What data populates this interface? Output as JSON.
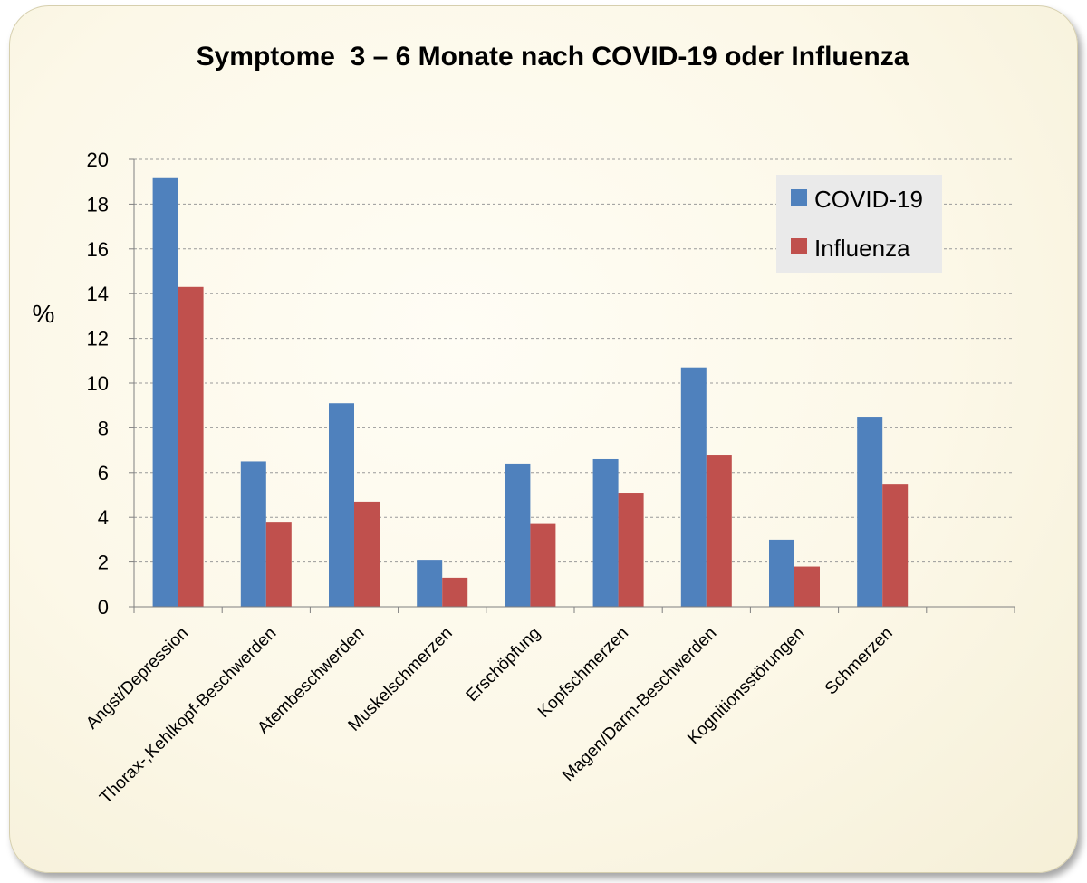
{
  "chart_data": {
    "type": "bar",
    "title": "Symptome  3 – 6 Monate nach COVID-19 oder Influenza",
    "ylabel": "%",
    "xlabel": "",
    "ylim": [
      0,
      20
    ],
    "yticks": [
      0,
      2,
      4,
      6,
      8,
      10,
      12,
      14,
      16,
      18,
      20
    ],
    "grid": true,
    "legend_position": "top-right",
    "categories": [
      "Angst/Depression",
      "Thorax-,Kehlkopf-Beschwerden",
      "Atembeschwerden",
      "Muskelschmerzen",
      "Erschöpfung",
      "Kopfschmerzen",
      "Magen/Darm-Beschwerden",
      "Kognitionsstörungen",
      "Schmerzen",
      ""
    ],
    "series": [
      {
        "name": "COVID-19",
        "color": "#4f81bd",
        "values": [
          19.2,
          6.5,
          9.1,
          2.1,
          6.4,
          6.6,
          10.7,
          3.0,
          8.5,
          null
        ]
      },
      {
        "name": "Influenza",
        "color": "#c0504d",
        "values": [
          14.3,
          3.8,
          4.7,
          1.3,
          3.7,
          5.1,
          6.8,
          1.8,
          5.5,
          null
        ]
      }
    ]
  }
}
